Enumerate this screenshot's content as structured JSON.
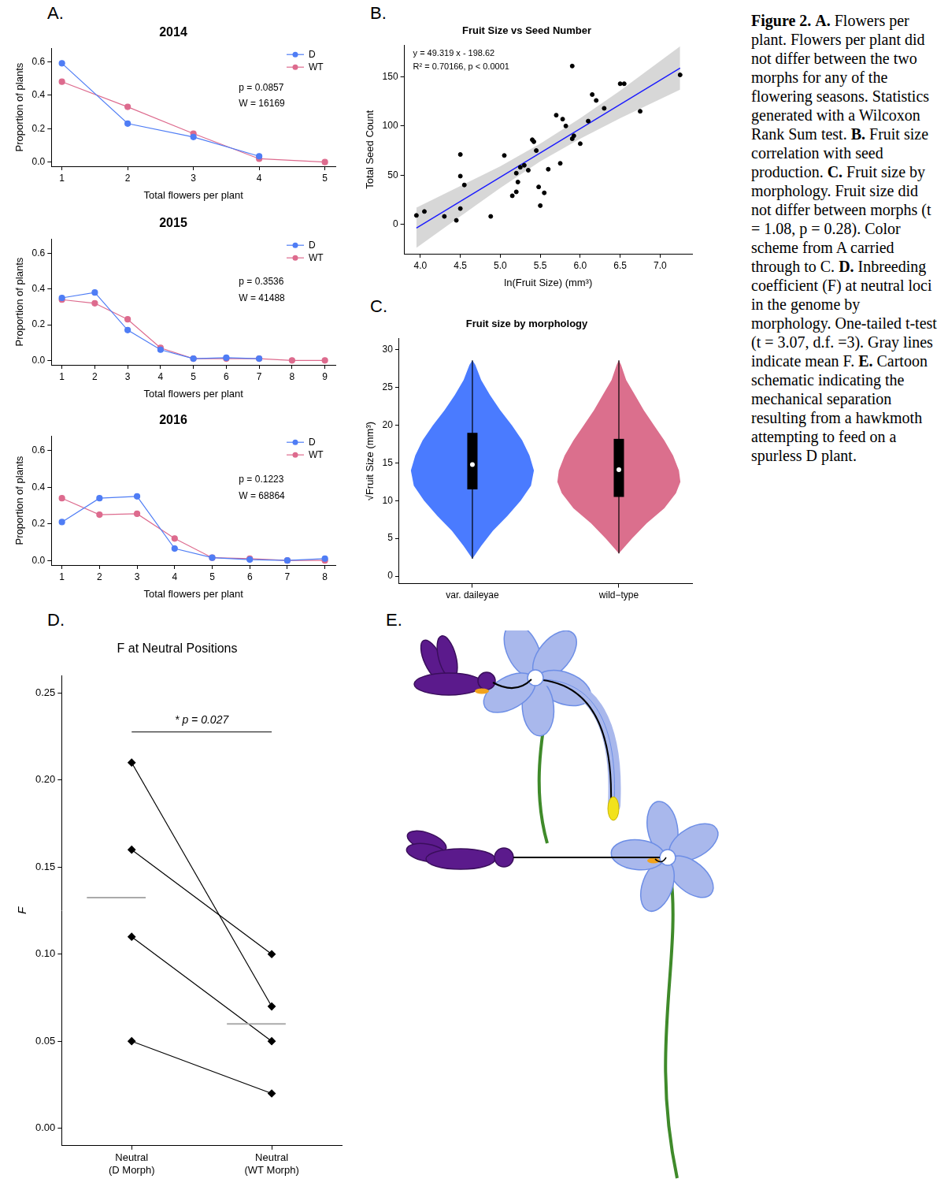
{
  "chart_data": [
    {
      "panel": "A.",
      "type": "line",
      "title": "2014",
      "x_label": "Total flowers per plant",
      "y_label": "Proportion of plants",
      "x": [
        1,
        2,
        3,
        4,
        5
      ],
      "series": [
        {
          "name": "D",
          "color": "#4f7df5",
          "values": [
            0.59,
            0.23,
            0.15,
            0.035,
            null
          ]
        },
        {
          "name": "WT",
          "color": "#dd6b8e",
          "values": [
            0.48,
            0.33,
            0.17,
            0.02,
            0.0
          ]
        }
      ],
      "xlim": [
        0.84,
        5.16
      ],
      "xticks": [
        1,
        2,
        3,
        4,
        5
      ],
      "ylim": [
        -0.025,
        0.68
      ],
      "yticks": [
        {
          "value": 0,
          "label": "0.0"
        },
        0.2,
        0.4,
        0.6
      ],
      "grid": false,
      "legend": "upper right",
      "annotations": [
        "p = 0.0857",
        "W = 16169"
      ]
    },
    {
      "type": "line",
      "title": "2015",
      "x_label": "Total flowers per plant",
      "y_label": "Proportion of plants",
      "x": [
        1,
        2,
        3,
        4,
        5,
        6,
        7,
        8,
        9
      ],
      "series": [
        {
          "name": "D",
          "color": "#4f7df5",
          "values": [
            0.35,
            0.38,
            0.17,
            0.06,
            0.01,
            0.015,
            0.01,
            null,
            null
          ]
        },
        {
          "name": "WT",
          "color": "#dd6b8e",
          "values": [
            0.34,
            0.32,
            0.23,
            0.07,
            0.01,
            0.01,
            0.01,
            0.0,
            0.0
          ]
        }
      ],
      "xlim": [
        0.68,
        9.32
      ],
      "xticks": [
        1,
        2,
        3,
        4,
        5,
        6,
        7,
        8,
        9
      ],
      "ylim": [
        -0.025,
        0.68
      ],
      "yticks": [
        {
          "value": 0,
          "label": "0.0"
        },
        0.2,
        0.4,
        0.6
      ],
      "grid": false,
      "legend": "upper right",
      "annotations": [
        "p = 0.3536",
        "W = 41488"
      ]
    },
    {
      "type": "line",
      "title": "2016",
      "x_label": "Total flowers per plant",
      "y_label": "Proportion of plants",
      "x": [
        1,
        2,
        3,
        4,
        5,
        6,
        7,
        8
      ],
      "series": [
        {
          "name": "D",
          "color": "#4f7df5",
          "values": [
            0.21,
            0.34,
            0.35,
            0.065,
            0.015,
            0.005,
            0.0,
            0.01
          ]
        },
        {
          "name": "WT",
          "color": "#dd6b8e",
          "values": [
            0.34,
            0.25,
            0.255,
            0.12,
            0.015,
            0.01,
            0.0,
            0.0
          ]
        }
      ],
      "xlim": [
        0.72,
        8.28
      ],
      "xticks": [
        1,
        2,
        3,
        4,
        5,
        6,
        7,
        8
      ],
      "ylim": [
        -0.025,
        0.68
      ],
      "yticks": [
        {
          "value": 0,
          "label": "0.0"
        },
        0.2,
        0.4,
        0.6
      ],
      "grid": false,
      "legend": "upper right",
      "annotations": [
        "p = 0.1223",
        "W = 68864"
      ]
    },
    {
      "panel": "B.",
      "type": "scatter",
      "title": "Fruit Size vs Seed Number",
      "x_label": "ln(Fruit Size) (mm³)",
      "y_label": "Total Seed Count",
      "x": [
        3.95,
        4.05,
        4.3,
        4.45,
        4.5,
        4.5,
        4.5,
        4.55,
        4.88,
        5.05,
        5.15,
        5.2,
        5.2,
        5.22,
        5.25,
        5.3,
        5.35,
        5.4,
        5.42,
        5.45,
        5.48,
        5.5,
        5.55,
        5.6,
        5.7,
        5.75,
        5.78,
        5.82,
        5.9,
        5.9,
        5.92,
        6.0,
        6.1,
        6.15,
        6.2,
        6.3,
        6.5,
        6.55,
        6.75,
        7.25
      ],
      "values": [
        9,
        13,
        8,
        4,
        16,
        71,
        49,
        40,
        8,
        70,
        29,
        33,
        52,
        43,
        58,
        60,
        55,
        86,
        84,
        75,
        38,
        19,
        32,
        56,
        111,
        62,
        107,
        100,
        161,
        87,
        90,
        82,
        105,
        132,
        126,
        118,
        143,
        143,
        115,
        152
      ],
      "color": "#000000",
      "fit": {
        "x": [
          3.95,
          7.25
        ],
        "values": [
          -3.8,
          158.9
        ],
        "color": "#1a1aff"
      },
      "band": {
        "x": [
          3.95,
          4.5,
          5.0,
          5.5,
          6.0,
          6.5,
          7.25
        ],
        "lower": [
          -24,
          8,
          37,
          64,
          87,
          108,
          137
        ],
        "upper": [
          17,
          39,
          59,
          82,
          108,
          136,
          181
        ]
      },
      "xlim": [
        3.8,
        7.4
      ],
      "xticks": [
        {
          "value": 4,
          "label": "4.0"
        },
        4.5,
        {
          "value": 5,
          "label": "5.0"
        },
        5.5,
        {
          "value": 6,
          "label": "6.0"
        },
        6.5,
        {
          "value": 7,
          "label": "7.0"
        }
      ],
      "ylim": [
        -30,
        182
      ],
      "yticks": [
        0,
        50,
        100,
        150
      ],
      "grid": false,
      "annotations": [
        "y = 49.319 x - 198.62",
        "R² = 0.70166, p < 0.0001"
      ]
    },
    {
      "panel": "C.",
      "type": "violin",
      "title": "Fruit size by morphology",
      "y_label": "√Fruit Size (mm³)",
      "categories": [
        "var. daileyae",
        "wild−type"
      ],
      "violins": [
        {
          "color": "#4a7bff",
          "y": [
            2.3,
            4,
            6,
            8,
            10,
            12,
            14,
            16,
            18,
            20,
            22,
            24,
            26,
            28,
            28.6
          ],
          "half_width": [
            0,
            0.06,
            0.14,
            0.24,
            0.33,
            0.4,
            0.42,
            0.39,
            0.34,
            0.27,
            0.19,
            0.12,
            0.06,
            0.02,
            0
          ],
          "min": 2.3,
          "q1": 11.5,
          "median": 14.8,
          "q3": 19.0,
          "max": 28.6
        },
        {
          "color": "#db6f8d",
          "y": [
            3,
            5,
            7,
            9,
            11,
            12.5,
            14,
            16,
            18,
            20,
            22,
            24,
            26,
            28,
            28.6
          ],
          "half_width": [
            0,
            0.09,
            0.19,
            0.31,
            0.39,
            0.42,
            0.41,
            0.37,
            0.31,
            0.24,
            0.17,
            0.11,
            0.05,
            0.015,
            0
          ],
          "min": 3,
          "q1": 10.5,
          "median": 14.1,
          "q3": 18.2,
          "max": 28.6
        }
      ],
      "ylim": [
        -1,
        31.5
      ],
      "yticks": [
        0,
        5,
        10,
        15,
        20,
        25,
        30
      ],
      "grid": false
    },
    {
      "panel": "D.",
      "type": "paired",
      "title": "F at Neutral Positions",
      "y_label": "F",
      "categories": [
        "Neutral (D Morph)",
        "Neutral (WT Morph)"
      ],
      "values": [
        [
          0.21,
          0.07
        ],
        [
          0.16,
          0.1
        ],
        [
          0.11,
          0.05
        ],
        [
          0.05,
          0.02
        ]
      ],
      "means": [
        0.1325,
        0.06
      ],
      "color": "#000000",
      "marker": "diamond",
      "ylim": [
        -0.01,
        0.26
      ],
      "yticks": [
        {
          "value": 0,
          "label": "0.00"
        },
        0.05,
        {
          "value": 0.1,
          "label": "0.10"
        },
        0.15,
        {
          "value": 0.2,
          "label": "0.20"
        },
        0.25
      ],
      "grid": false,
      "annotations": [
        "* p = 0.027"
      ]
    }
  ],
  "diagram": {
    "panel": "E."
  },
  "caption": {
    "title": "Figure 2.",
    "parts": [
      {
        "label": "A.",
        "text": "Flowers per plant. Flowers per plant did not differ between the two morphs for any of the flowering seasons. Statistics generated with a Wilcoxon Rank Sum test."
      },
      {
        "label": "B.",
        "text": "Fruit size correlation with seed production."
      },
      {
        "label": "C.",
        "text": "Fruit size by morphology. Fruit size did not differ between morphs (t = 1.08, p = 0.28). Color scheme from A carried through to C."
      },
      {
        "label": "D.",
        "text": "Inbreeding coefficient (F) at neutral loci in the genome by morphology. One-tailed t-test (t = 3.07, d.f. =3). Gray lines indicate mean F."
      },
      {
        "label": "E.",
        "text": "Cartoon schematic indicating the mechanical separation resulting from a hawkmoth attempting to feed on a spurless D plant."
      }
    ]
  }
}
